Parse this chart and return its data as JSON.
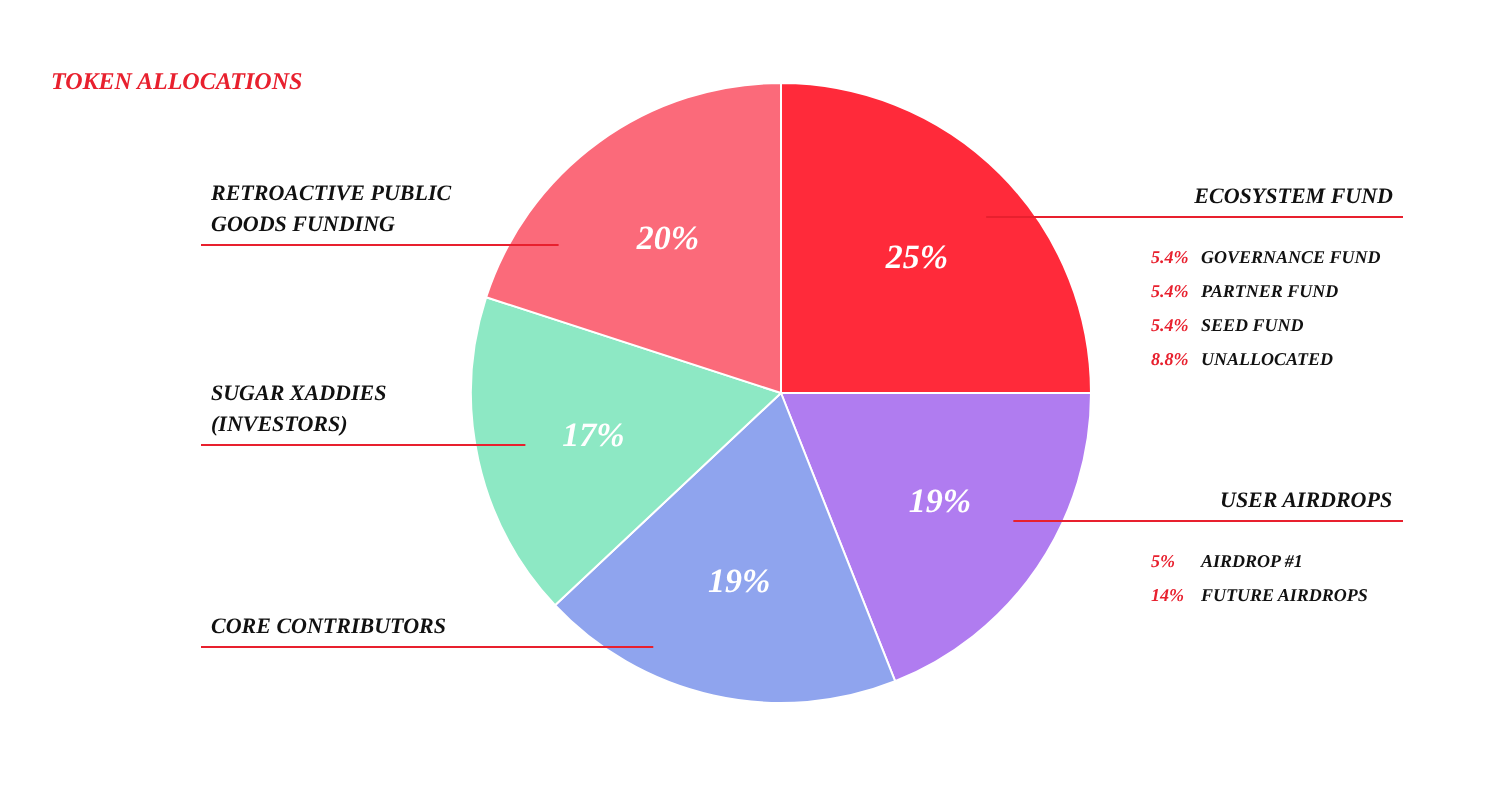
{
  "chart_data": {
    "type": "pie",
    "title": "TOKEN ALLOCATIONS",
    "categories": [
      "ECOSYSTEM FUND",
      "USER AIRDROPS",
      "CORE CONTRIBUTORS",
      "SUGAR XADDIES\n(INVESTORS)",
      "RETROACTIVE PUBLIC\nGOODS FUNDING"
    ],
    "values": [
      25,
      19,
      19,
      17,
      20
    ],
    "colors": [
      "#ff2a3a",
      "#b07cf0",
      "#8fa4ee",
      "#8de8c4",
      "#fb6a7a"
    ],
    "value_labels": [
      "25%",
      "19%",
      "19%",
      "17%",
      "20%"
    ],
    "annotations": [
      "5.4% GOVERNANCE FUND",
      "5.4% PARTNER FUND",
      "5.4% SEED FUND",
      "8.8% UNALLOCATED",
      "5% AIRDROP #1",
      "14% FUTURE AIRDROPS"
    ]
  }
}
